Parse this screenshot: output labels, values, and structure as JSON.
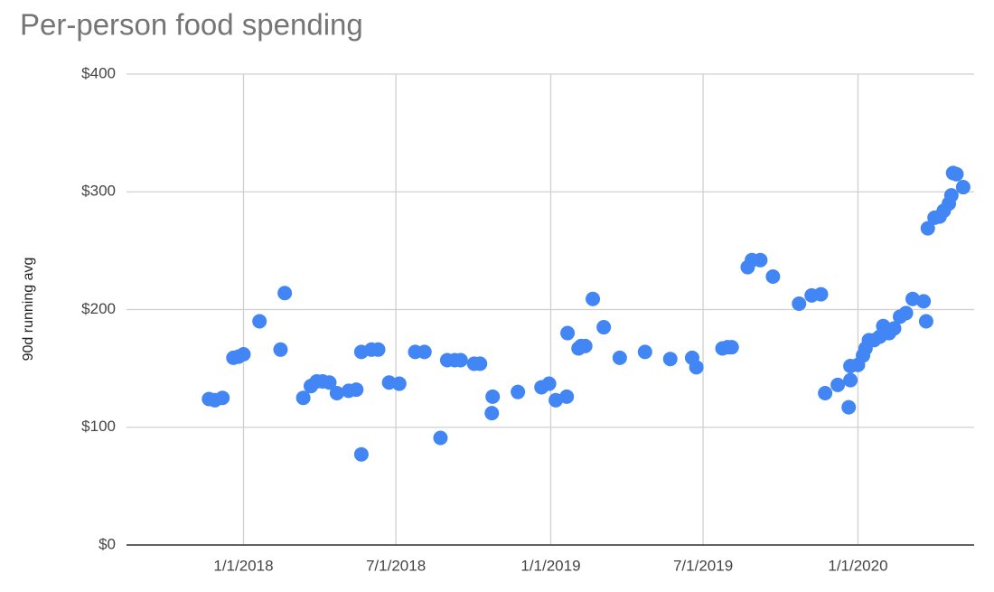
{
  "chart_data": {
    "type": "scatter",
    "title": "Per-person food spending",
    "y_label": "90d running avg",
    "color": "#4285f4",
    "grid": true,
    "xlim": [
      "8/15/2017",
      "5/18/2020"
    ],
    "xticks": [
      "1/1/2018",
      "7/1/2018",
      "1/1/2019",
      "7/1/2019",
      "1/1/2020"
    ],
    "ylim": [
      0,
      400
    ],
    "yticks": [
      {
        "value": 0,
        "label": "$0"
      },
      {
        "value": 100,
        "label": "$100"
      },
      {
        "value": 200,
        "label": "$200"
      },
      {
        "value": 300,
        "label": "$300"
      },
      {
        "value": 400,
        "label": "$400"
      }
    ],
    "x": [
      "11/21/2017",
      "11/28/2017",
      "12/7/2017",
      "12/20/2017",
      "12/26/2017",
      "1/1/2018",
      "1/20/2018",
      "2/14/2018",
      "2/19/2018",
      "3/13/2018",
      "3/22/2018",
      "3/29/2018",
      "4/5/2018",
      "4/13/2018",
      "4/22/2018",
      "5/6/2018",
      "5/15/2018",
      "5/21/2018",
      "5/21/2018",
      "6/2/2018",
      "6/10/2018",
      "6/23/2018",
      "7/5/2018",
      "7/24/2018",
      "8/4/2018",
      "8/23/2018",
      "8/31/2018",
      "9/9/2018",
      "9/16/2018",
      "10/2/2018",
      "10/9/2018",
      "10/24/2018",
      "10/23/2018",
      "11/23/2018",
      "12/21/2018",
      "12/30/2018",
      "1/7/2019",
      "1/20/2019",
      "1/21/2019",
      "2/3/2019",
      "2/6/2019",
      "2/11/2019",
      "2/20/2019",
      "3/5/2019",
      "3/24/2019",
      "4/23/2019",
      "5/23/2019",
      "6/18/2019",
      "6/23/2019",
      "7/24/2019",
      "7/30/2019",
      "8/4/2019",
      "8/23/2019",
      "8/28/2019",
      "9/7/2019",
      "9/22/2019",
      "10/23/2019",
      "11/7/2019",
      "11/18/2019",
      "11/23/2019",
      "12/8/2019",
      "12/21/2019",
      "12/23/2019",
      "12/23/2019",
      "1/1/2020",
      "1/7/2020",
      "1/10/2020",
      "1/14/2020",
      "1/20/2020",
      "1/27/2020",
      "1/31/2020",
      "2/7/2020",
      "2/13/2020",
      "2/20/2020",
      "2/27/2020",
      "3/6/2020",
      "3/19/2020",
      "3/22/2020",
      "3/24/2020",
      "4/1/2020",
      "4/7/2020",
      "4/12/2020",
      "4/18/2020",
      "4/21/2020",
      "4/23/2020",
      "4/27/2020",
      "5/5/2020"
    ],
    "values": [
      124,
      123,
      125,
      159,
      160,
      162,
      190,
      166,
      214,
      125,
      135,
      139,
      139,
      138,
      129,
      131,
      132,
      77,
      164,
      166,
      166,
      138,
      137,
      164,
      164,
      91,
      157,
      157,
      157,
      154,
      154,
      126,
      112,
      130,
      134,
      137,
      123,
      126,
      180,
      167,
      169,
      169,
      209,
      185,
      159,
      164,
      158,
      159,
      151,
      167,
      168,
      168,
      236,
      242,
      242,
      228,
      205,
      212,
      213,
      129,
      136,
      117,
      140,
      152,
      153,
      161,
      167,
      174,
      174,
      177,
      186,
      180,
      184,
      194,
      197,
      209,
      207,
      190,
      269,
      278,
      279,
      284,
      290,
      297,
      316,
      315,
      304
    ]
  }
}
